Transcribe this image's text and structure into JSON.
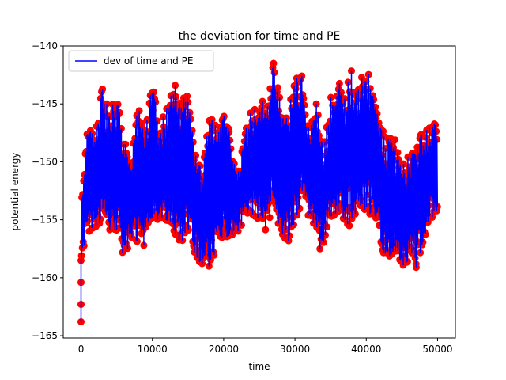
{
  "chart_data": {
    "type": "line",
    "title": "the deviation for time and PE",
    "xlabel": "time",
    "ylabel": "potential energy",
    "xlim": [
      -2500,
      52500
    ],
    "ylim": [
      -165.2,
      -140
    ],
    "xticks": [
      0,
      10000,
      20000,
      30000,
      40000,
      50000
    ],
    "xtick_labels": [
      "0",
      "10000",
      "20000",
      "30000",
      "40000",
      "50000"
    ],
    "yticks": [
      -165,
      -160,
      -155,
      -150,
      -145,
      -140
    ],
    "ytick_labels": [
      "−165",
      "−160",
      "−155",
      "−150",
      "−145",
      "−140"
    ],
    "grid": false,
    "legend": {
      "position": "top-left",
      "entries": [
        "dev of time and PE"
      ]
    },
    "series": [
      {
        "name": "dev of time and PE",
        "line_color": "#0000ff",
        "marker_color": "#ff0000",
        "initial_points": [
          [
            0,
            -163.8
          ],
          [
            0,
            -162.3
          ],
          [
            0,
            -160.4
          ],
          [
            0,
            -158.5
          ]
        ],
        "envelope": {
          "x": [
            0,
            500,
            1000,
            2000,
            3000,
            4000,
            5000,
            6000,
            7000,
            8000,
            9000,
            10000,
            11000,
            12000,
            13000,
            14000,
            15000,
            16000,
            17000,
            18000,
            19000,
            20000,
            21000,
            22000,
            23000,
            24000,
            25000,
            26000,
            27000,
            28000,
            29000,
            30000,
            31000,
            32000,
            33000,
            34000,
            35000,
            36000,
            37000,
            38000,
            39000,
            40000,
            41000,
            42000,
            43000,
            44000,
            45000,
            46000,
            47000,
            48000,
            49000,
            50000
          ],
          "upper": [
            -154,
            -150,
            -146.5,
            -147,
            -143.5,
            -146,
            -143.8,
            -148,
            -150,
            -145,
            -147,
            -143,
            -147,
            -145,
            -143,
            -145,
            -143.5,
            -149,
            -151,
            -146,
            -147,
            -145.5,
            -148,
            -151,
            -147,
            -145,
            -145,
            -144.5,
            -141.5,
            -145,
            -146,
            -142.5,
            -142.5,
            -147,
            -145,
            -149,
            -144.5,
            -143,
            -144,
            -142,
            -143.5,
            -141.3,
            -144,
            -147,
            -148,
            -148,
            -150,
            -149.5,
            -148,
            -147.5,
            -147,
            -145.5
          ],
          "lower": [
            -158.5,
            -157,
            -156,
            -156,
            -155.5,
            -156,
            -157,
            -158,
            -157,
            -157,
            -156,
            -155,
            -155.5,
            -155,
            -156,
            -157,
            -156,
            -158,
            -159,
            -159,
            -158,
            -156,
            -157,
            -156,
            -155,
            -154.5,
            -155,
            -156,
            -154,
            -156,
            -157,
            -156,
            -153,
            -155,
            -156,
            -157,
            -155,
            -154.5,
            -155,
            -156,
            -153.5,
            -155,
            -154,
            -157,
            -159,
            -158,
            -159,
            -158.5,
            -159,
            -157,
            -155,
            -154.5
          ],
          "min_points": [
            [
              8800,
              -157.2
            ],
            [
              28600,
              -156.6
            ],
            [
              33500,
              -157.5
            ],
            [
              47000,
              -159.1
            ]
          ]
        }
      }
    ]
  }
}
